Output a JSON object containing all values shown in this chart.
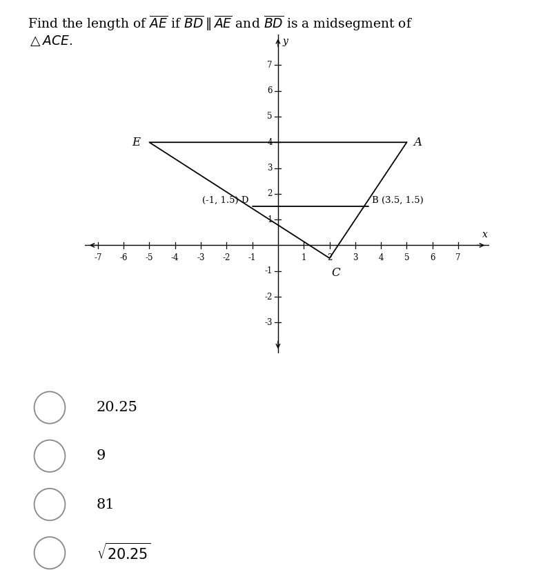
{
  "bg_color": "#ffffff",
  "text_color": "#000000",
  "line_color": "#000000",
  "points": {
    "E": [
      -5,
      4
    ],
    "A": [
      5,
      4
    ],
    "C": [
      2,
      -0.5
    ],
    "D": [
      -1,
      1.5
    ],
    "B": [
      3.5,
      1.5
    ]
  },
  "xmin": -7.5,
  "xmax": 8.2,
  "ymin": -4.2,
  "ymax": 8.2,
  "xticks": [
    -7,
    -6,
    -5,
    -4,
    -3,
    -2,
    -1,
    1,
    2,
    3,
    4,
    5,
    6,
    7
  ],
  "yticks": [
    -3,
    -2,
    -1,
    1,
    2,
    3,
    4,
    5,
    6,
    7
  ],
  "choices": [
    "20.25",
    "9",
    "81",
    "sqrt{20.25}"
  ],
  "title": "Find the length of $\\overline{AE}$ if $\\overline{BD}\\parallel\\overline{AE}$ and $\\overline{BD}$ is a midsegment of $\\triangle ACE$."
}
